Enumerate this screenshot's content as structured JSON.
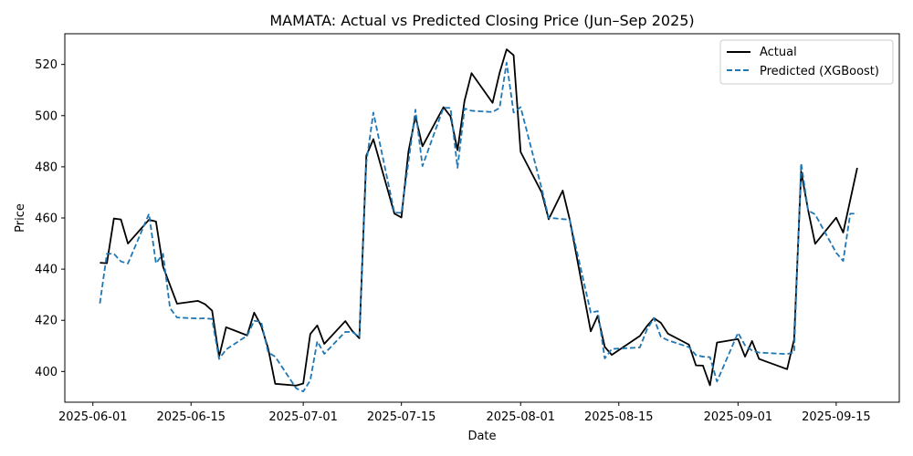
{
  "chart_data": {
    "type": "line",
    "title": "MAMATA: Actual vs Predicted Closing Price (Jun–Sep 2025)",
    "xlabel": "Date",
    "ylabel": "Price",
    "xlim": [
      "2025-05-28",
      "2025-09-24"
    ],
    "ylim": [
      388,
      532
    ],
    "x_ticks": [
      "2025-06-01",
      "2025-06-15",
      "2025-07-01",
      "2025-07-15",
      "2025-08-01",
      "2025-08-15",
      "2025-09-01",
      "2025-09-15"
    ],
    "y_ticks": [
      400,
      420,
      440,
      460,
      480,
      500,
      520
    ],
    "grid": false,
    "legend_position": "upper right",
    "series": [
      {
        "name": "Actual",
        "color": "#000000",
        "style": "solid",
        "points": [
          [
            "2025-06-02",
            442.5
          ],
          [
            "2025-06-03",
            442.3
          ],
          [
            "2025-06-04",
            459.8
          ],
          [
            "2025-06-05",
            459.4
          ],
          [
            "2025-06-06",
            450.0
          ],
          [
            "2025-06-09",
            459.3
          ],
          [
            "2025-06-10",
            458.6
          ],
          [
            "2025-06-11",
            441.0
          ],
          [
            "2025-06-13",
            426.5
          ],
          [
            "2025-06-16",
            427.6
          ],
          [
            "2025-06-17",
            426.3
          ],
          [
            "2025-06-18",
            423.8
          ],
          [
            "2025-06-19",
            405.8
          ],
          [
            "2025-06-20",
            417.3
          ],
          [
            "2025-06-23",
            414.1
          ],
          [
            "2025-06-24",
            423.0
          ],
          [
            "2025-06-25",
            417.9
          ],
          [
            "2025-06-26",
            409.0
          ],
          [
            "2025-06-27",
            395.2
          ],
          [
            "2025-06-30",
            394.5
          ],
          [
            "2025-07-01",
            395.3
          ],
          [
            "2025-07-02",
            414.6
          ],
          [
            "2025-07-03",
            418.0
          ],
          [
            "2025-07-04",
            410.8
          ],
          [
            "2025-07-07",
            419.7
          ],
          [
            "2025-07-08",
            415.8
          ],
          [
            "2025-07-09",
            413.0
          ],
          [
            "2025-07-10",
            484.4
          ],
          [
            "2025-07-11",
            490.8
          ],
          [
            "2025-07-14",
            461.7
          ],
          [
            "2025-07-15",
            460.2
          ],
          [
            "2025-07-16",
            485.9
          ],
          [
            "2025-07-17",
            499.8
          ],
          [
            "2025-07-18",
            488.0
          ],
          [
            "2025-07-21",
            503.3
          ],
          [
            "2025-07-22",
            499.7
          ],
          [
            "2025-07-23",
            486.5
          ],
          [
            "2025-07-24",
            505.8
          ],
          [
            "2025-07-25",
            516.6
          ],
          [
            "2025-07-28",
            505.0
          ],
          [
            "2025-07-29",
            516.7
          ],
          [
            "2025-07-30",
            525.9
          ],
          [
            "2025-07-31",
            523.6
          ],
          [
            "2025-08-01",
            485.8
          ],
          [
            "2025-08-04",
            470.0
          ],
          [
            "2025-08-05",
            459.5
          ],
          [
            "2025-08-07",
            470.7
          ],
          [
            "2025-08-08",
            459.4
          ],
          [
            "2025-08-11",
            415.7
          ],
          [
            "2025-08-12",
            421.8
          ],
          [
            "2025-08-13",
            409.6
          ],
          [
            "2025-08-14",
            406.5
          ],
          [
            "2025-08-18",
            413.9
          ],
          [
            "2025-08-19",
            417.7
          ],
          [
            "2025-08-20",
            420.9
          ],
          [
            "2025-08-21",
            419.0
          ],
          [
            "2025-08-22",
            414.8
          ],
          [
            "2025-08-25",
            410.5
          ],
          [
            "2025-08-26",
            402.4
          ],
          [
            "2025-08-27",
            402.3
          ],
          [
            "2025-08-28",
            394.6
          ],
          [
            "2025-08-29",
            411.3
          ],
          [
            "2025-09-01",
            412.7
          ],
          [
            "2025-09-02",
            405.8
          ],
          [
            "2025-09-03",
            411.9
          ],
          [
            "2025-09-04",
            404.9
          ],
          [
            "2025-09-08",
            400.9
          ],
          [
            "2025-09-09",
            412.5
          ],
          [
            "2025-09-10",
            478.2
          ],
          [
            "2025-09-11",
            463.0
          ],
          [
            "2025-09-12",
            449.9
          ],
          [
            "2025-09-15",
            460.1
          ],
          [
            "2025-09-16",
            454.3
          ],
          [
            "2025-09-18",
            479.6
          ]
        ]
      },
      {
        "name": "Predicted (XGBoost)",
        "color": "#1f77b4",
        "style": "dashed",
        "points": [
          [
            "2025-06-02",
            426.6
          ],
          [
            "2025-06-03",
            446.0
          ],
          [
            "2025-06-04",
            446.0
          ],
          [
            "2025-06-05",
            443.0
          ],
          [
            "2025-06-06",
            442.2
          ],
          [
            "2025-06-09",
            461.6
          ],
          [
            "2025-06-10",
            442.3
          ],
          [
            "2025-06-11",
            446.0
          ],
          [
            "2025-06-12",
            424.8
          ],
          [
            "2025-06-13",
            421.1
          ],
          [
            "2025-06-16",
            420.7
          ],
          [
            "2025-06-17",
            420.8
          ],
          [
            "2025-06-18",
            420.5
          ],
          [
            "2025-06-19",
            404.9
          ],
          [
            "2025-06-20",
            408.6
          ],
          [
            "2025-06-23",
            414.0
          ],
          [
            "2025-06-24",
            419.8
          ],
          [
            "2025-06-25",
            419.4
          ],
          [
            "2025-06-26",
            407.5
          ],
          [
            "2025-06-27",
            405.8
          ],
          [
            "2025-06-30",
            393.4
          ],
          [
            "2025-07-01",
            392.2
          ],
          [
            "2025-07-02",
            396.5
          ],
          [
            "2025-07-03",
            411.8
          ],
          [
            "2025-07-04",
            406.9
          ],
          [
            "2025-07-07",
            415.5
          ],
          [
            "2025-07-08",
            415.4
          ],
          [
            "2025-07-09",
            413.6
          ],
          [
            "2025-07-10",
            481.7
          ],
          [
            "2025-07-11",
            501.2
          ],
          [
            "2025-07-14",
            462.1
          ],
          [
            "2025-07-15",
            462.0
          ],
          [
            "2025-07-16",
            481.8
          ],
          [
            "2025-07-17",
            502.3
          ],
          [
            "2025-07-18",
            480.3
          ],
          [
            "2025-07-21",
            503.1
          ],
          [
            "2025-07-22",
            503.0
          ],
          [
            "2025-07-23",
            479.6
          ],
          [
            "2025-07-24",
            502.8
          ],
          [
            "2025-07-25",
            501.9
          ],
          [
            "2025-07-28",
            501.4
          ],
          [
            "2025-07-29",
            503.0
          ],
          [
            "2025-07-30",
            520.7
          ],
          [
            "2025-07-31",
            501.2
          ],
          [
            "2025-08-01",
            503.3
          ],
          [
            "2025-08-04",
            471.5
          ],
          [
            "2025-08-05",
            460.1
          ],
          [
            "2025-08-08",
            459.3
          ],
          [
            "2025-08-11",
            423.0
          ],
          [
            "2025-08-12",
            423.6
          ],
          [
            "2025-08-13",
            405.1
          ],
          [
            "2025-08-14",
            408.8
          ],
          [
            "2025-08-18",
            409.4
          ],
          [
            "2025-08-19",
            416.3
          ],
          [
            "2025-08-20",
            420.9
          ],
          [
            "2025-08-21",
            413.5
          ],
          [
            "2025-08-22",
            412.2
          ],
          [
            "2025-08-25",
            409.5
          ],
          [
            "2025-08-26",
            406.4
          ],
          [
            "2025-08-27",
            405.8
          ],
          [
            "2025-08-28",
            405.6
          ],
          [
            "2025-08-29",
            396.1
          ],
          [
            "2025-09-01",
            415.1
          ],
          [
            "2025-09-02",
            410.2
          ],
          [
            "2025-09-03",
            408.2
          ],
          [
            "2025-09-04",
            407.4
          ],
          [
            "2025-09-08",
            406.8
          ],
          [
            "2025-09-09",
            407.5
          ],
          [
            "2025-09-10",
            481.4
          ],
          [
            "2025-09-11",
            462.9
          ],
          [
            "2025-09-12",
            461.4
          ],
          [
            "2025-09-15",
            446.4
          ],
          [
            "2025-09-16",
            443.2
          ],
          [
            "2025-09-17",
            461.7
          ],
          [
            "2025-09-18",
            461.7
          ]
        ]
      }
    ]
  }
}
